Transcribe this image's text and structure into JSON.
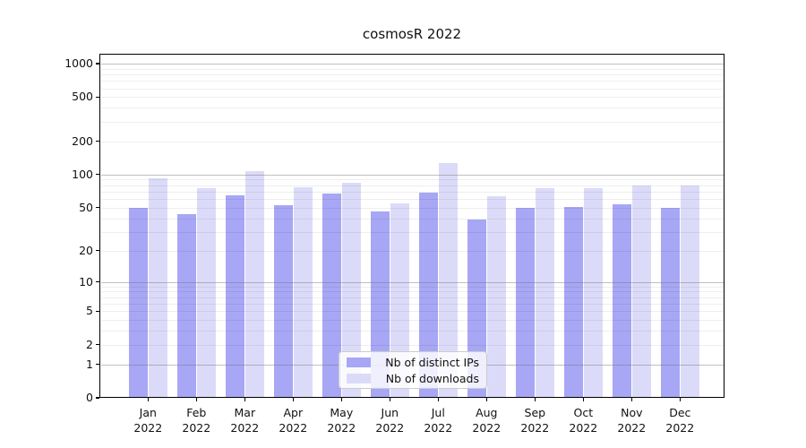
{
  "title": "cosmosR 2022",
  "chart_data": {
    "type": "bar",
    "title": "cosmosR 2022",
    "x_tick_months": [
      "Jan",
      "Feb",
      "Mar",
      "Apr",
      "May",
      "Jun",
      "Jul",
      "Aug",
      "Sep",
      "Oct",
      "Nov",
      "Dec"
    ],
    "x_tick_year": "2022",
    "categories": [
      "Jan 2022",
      "Feb 2022",
      "Mar 2022",
      "Apr 2022",
      "May 2022",
      "Jun 2022",
      "Jul 2022",
      "Aug 2022",
      "Sep 2022",
      "Oct 2022",
      "Nov 2022",
      "Dec 2022"
    ],
    "series": [
      {
        "name": "Nb of distinct IPs",
        "color": "#a7a7f5",
        "values": [
          50,
          44,
          65,
          53,
          67,
          46,
          69,
          39,
          50,
          51,
          54,
          50
        ]
      },
      {
        "name": "Nb of downloads",
        "color": "#dbdbf9",
        "values": [
          92,
          76,
          108,
          77,
          84,
          55,
          126,
          64,
          76,
          76,
          79,
          79
        ]
      }
    ],
    "y_scale": "log1p",
    "y_ticks": [
      0,
      1,
      2,
      5,
      10,
      20,
      50,
      100,
      200,
      500,
      1000
    ],
    "y_minor_gridlines": [
      2,
      3,
      4,
      5,
      6,
      7,
      8,
      9,
      20,
      30,
      40,
      50,
      60,
      70,
      80,
      90,
      200,
      300,
      400,
      500,
      600,
      700,
      800,
      900
    ],
    "y_major_gridlines": [
      1,
      10,
      100,
      1000
    ],
    "ylim": [
      0,
      1200
    ],
    "grid": "on",
    "legend": {
      "position": "lower-center",
      "entries": [
        "Nb of distinct IPs",
        "Nb of downloads"
      ]
    }
  }
}
